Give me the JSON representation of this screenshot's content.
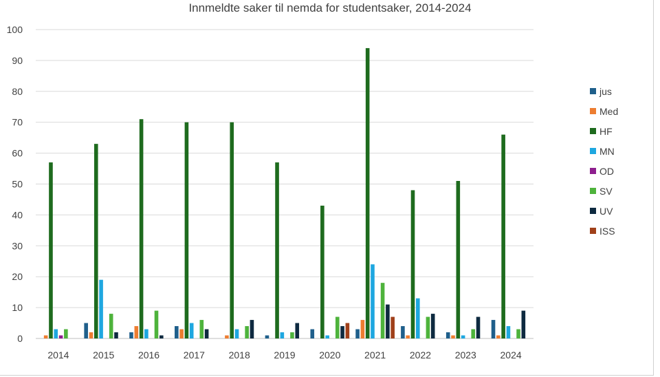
{
  "chart_data": {
    "type": "bar",
    "title": "Innmeldte saker til nemda for studentsaker, 2014-2024",
    "xlabel": "",
    "ylabel": "",
    "ylim": [
      0,
      100
    ],
    "yticks": [
      0,
      10,
      20,
      30,
      40,
      50,
      60,
      70,
      80,
      90,
      100
    ],
    "grid": true,
    "legend_position": "right",
    "categories": [
      "2014",
      "2015",
      "2016",
      "2017",
      "2018",
      "2019",
      "2020",
      "2021",
      "2022",
      "2023",
      "2024"
    ],
    "series": [
      {
        "name": "jus",
        "color": "#1f5f8b",
        "values": [
          0,
          5,
          2,
          4,
          0,
          1,
          3,
          3,
          4,
          2,
          6
        ]
      },
      {
        "name": "Med",
        "color": "#ed7d31",
        "values": [
          1,
          2,
          4,
          3,
          1,
          0,
          0,
          6,
          1,
          1,
          1
        ]
      },
      {
        "name": "HF",
        "color": "#1e6b1e",
        "values": [
          57,
          63,
          71,
          70,
          70,
          57,
          43,
          94,
          48,
          51,
          66
        ]
      },
      {
        "name": "MN",
        "color": "#1ea7e0",
        "values": [
          3,
          19,
          3,
          5,
          3,
          2,
          1,
          24,
          13,
          1,
          4
        ]
      },
      {
        "name": "OD",
        "color": "#8e1f8e",
        "values": [
          1,
          0,
          0,
          0,
          0,
          0,
          0,
          0,
          0,
          0,
          0
        ]
      },
      {
        "name": "SV",
        "color": "#4eb33c",
        "values": [
          3,
          8,
          9,
          6,
          4,
          2,
          7,
          18,
          7,
          3,
          3
        ]
      },
      {
        "name": "UV",
        "color": "#0e2a40",
        "values": [
          0,
          2,
          1,
          3,
          6,
          5,
          4,
          11,
          8,
          7,
          9
        ]
      },
      {
        "name": "ISS",
        "color": "#a0401a",
        "values": [
          0,
          0,
          0,
          0,
          0,
          0,
          5,
          7,
          0,
          0,
          0
        ]
      }
    ]
  }
}
